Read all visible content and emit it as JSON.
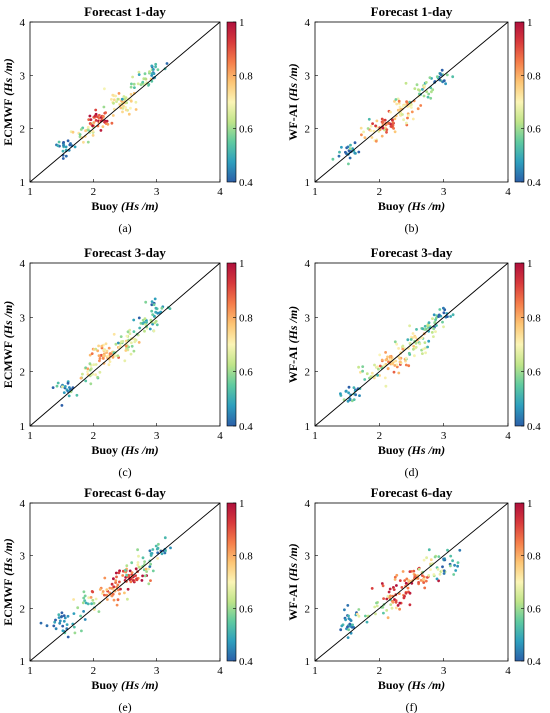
{
  "colorscale": {
    "stops": [
      "#2c5fa8",
      "#2e9fbe",
      "#5fcaa0",
      "#bfe589",
      "#fbf5b6",
      "#fdc574",
      "#f57d4a",
      "#d83a3c",
      "#b0103d"
    ],
    "ticks": [
      "0.4",
      "0.6",
      "0.8",
      "1"
    ],
    "range": [
      0.4,
      1
    ]
  },
  "chart_data": [
    {
      "type": "scatter",
      "panel": "a",
      "caption": "(a)",
      "title": "Forecast 1-day",
      "xlabel_main": "Buoy ",
      "xlabel_unit": "(Hs /m)",
      "ylabel_main": "ECMWF ",
      "ylabel_unit": "(Hs /m)",
      "xlim": [
        1,
        4
      ],
      "ylim": [
        1,
        4
      ],
      "xticks": [
        "1",
        "2",
        "3",
        "4"
      ],
      "yticks": [
        "1",
        "2",
        "3",
        "4"
      ],
      "reference_line": "y = x",
      "clusters": [
        {
          "x": 1.55,
          "y": 1.65,
          "sx": 0.08,
          "sy": 0.08,
          "n": 22,
          "c": 0.45
        },
        {
          "x": 1.85,
          "y": 1.95,
          "sx": 0.1,
          "sy": 0.1,
          "n": 22,
          "c": 0.65
        },
        {
          "x": 2.1,
          "y": 2.15,
          "sx": 0.1,
          "sy": 0.08,
          "n": 40,
          "c": 0.9
        },
        {
          "x": 2.45,
          "y": 2.5,
          "sx": 0.13,
          "sy": 0.11,
          "n": 45,
          "c": 0.72
        },
        {
          "x": 2.8,
          "y": 2.85,
          "sx": 0.1,
          "sy": 0.1,
          "n": 25,
          "c": 0.6
        },
        {
          "x": 3.0,
          "y": 3.1,
          "sx": 0.08,
          "sy": 0.07,
          "n": 18,
          "c": 0.5
        }
      ]
    },
    {
      "type": "scatter",
      "panel": "b",
      "caption": "(b)",
      "title": "Forecast 1-day",
      "xlabel_main": "Buoy ",
      "xlabel_unit": "(Hs /m)",
      "ylabel_main": "WF-AI ",
      "ylabel_unit": "(Hs /m)",
      "xlim": [
        1,
        4
      ],
      "ylim": [
        1,
        4
      ],
      "xticks": [
        "1",
        "2",
        "3",
        "4"
      ],
      "yticks": [
        "1",
        "2",
        "3",
        "4"
      ],
      "reference_line": "y = x",
      "clusters": [
        {
          "x": 1.55,
          "y": 1.55,
          "sx": 0.08,
          "sy": 0.08,
          "n": 22,
          "c": 0.45
        },
        {
          "x": 1.9,
          "y": 1.95,
          "sx": 0.1,
          "sy": 0.1,
          "n": 22,
          "c": 0.7
        },
        {
          "x": 2.1,
          "y": 2.1,
          "sx": 0.1,
          "sy": 0.08,
          "n": 35,
          "c": 0.9
        },
        {
          "x": 2.35,
          "y": 2.35,
          "sx": 0.12,
          "sy": 0.11,
          "n": 45,
          "c": 0.75
        },
        {
          "x": 2.7,
          "y": 2.75,
          "sx": 0.1,
          "sy": 0.1,
          "n": 25,
          "c": 0.6
        },
        {
          "x": 2.95,
          "y": 3.0,
          "sx": 0.08,
          "sy": 0.07,
          "n": 18,
          "c": 0.48
        }
      ]
    },
    {
      "type": "scatter",
      "panel": "c",
      "caption": "(c)",
      "title": "Forecast 3-day",
      "xlabel_main": "Buoy ",
      "xlabel_unit": "(Hs /m)",
      "ylabel_main": "ECMWF ",
      "ylabel_unit": "(Hs /m)",
      "xlim": [
        1,
        4
      ],
      "ylim": [
        1,
        4
      ],
      "xticks": [
        "1",
        "2",
        "3",
        "4"
      ],
      "yticks": [
        "1",
        "2",
        "3",
        "4"
      ],
      "reference_line": "y = x",
      "clusters": [
        {
          "x": 1.55,
          "y": 1.7,
          "sx": 0.08,
          "sy": 0.08,
          "n": 22,
          "c": 0.45
        },
        {
          "x": 1.9,
          "y": 2.0,
          "sx": 0.1,
          "sy": 0.1,
          "n": 22,
          "c": 0.65
        },
        {
          "x": 2.2,
          "y": 2.3,
          "sx": 0.12,
          "sy": 0.1,
          "n": 45,
          "c": 0.78
        },
        {
          "x": 2.5,
          "y": 2.55,
          "sx": 0.13,
          "sy": 0.12,
          "n": 45,
          "c": 0.66
        },
        {
          "x": 2.85,
          "y": 2.9,
          "sx": 0.11,
          "sy": 0.11,
          "n": 28,
          "c": 0.55
        },
        {
          "x": 3.0,
          "y": 3.15,
          "sx": 0.09,
          "sy": 0.08,
          "n": 18,
          "c": 0.45
        }
      ]
    },
    {
      "type": "scatter",
      "panel": "d",
      "caption": "(d)",
      "title": "Forecast 3-day",
      "xlabel_main": "Buoy ",
      "xlabel_unit": "(Hs /m)",
      "ylabel_main": "WF-AI ",
      "ylabel_unit": "(Hs /m)",
      "xlim": [
        1,
        4
      ],
      "ylim": [
        1,
        4
      ],
      "xticks": [
        "1",
        "2",
        "3",
        "4"
      ],
      "yticks": [
        "1",
        "2",
        "3",
        "4"
      ],
      "reference_line": "y = x",
      "clusters": [
        {
          "x": 1.55,
          "y": 1.6,
          "sx": 0.08,
          "sy": 0.08,
          "n": 22,
          "c": 0.45
        },
        {
          "x": 1.9,
          "y": 1.95,
          "sx": 0.1,
          "sy": 0.1,
          "n": 22,
          "c": 0.65
        },
        {
          "x": 2.2,
          "y": 2.2,
          "sx": 0.12,
          "sy": 0.1,
          "n": 45,
          "c": 0.78
        },
        {
          "x": 2.5,
          "y": 2.5,
          "sx": 0.13,
          "sy": 0.12,
          "n": 45,
          "c": 0.66
        },
        {
          "x": 2.8,
          "y": 2.8,
          "sx": 0.11,
          "sy": 0.11,
          "n": 28,
          "c": 0.56
        },
        {
          "x": 3.0,
          "y": 3.05,
          "sx": 0.09,
          "sy": 0.08,
          "n": 18,
          "c": 0.45
        }
      ]
    },
    {
      "type": "scatter",
      "panel": "e",
      "caption": "(e)",
      "title": "Forecast 6-day",
      "xlabel_main": "Buoy ",
      "xlabel_unit": "(Hs /m)",
      "ylabel_main": "ECMWF ",
      "ylabel_unit": "(Hs /m)",
      "xlim": [
        1,
        4
      ],
      "ylim": [
        1,
        4
      ],
      "xticks": [
        "1",
        "2",
        "3",
        "4"
      ],
      "yticks": [
        "1",
        "2",
        "3",
        "4"
      ],
      "reference_line": "y = x",
      "clusters": [
        {
          "x": 1.55,
          "y": 1.7,
          "sx": 0.1,
          "sy": 0.12,
          "n": 28,
          "c": 0.45
        },
        {
          "x": 1.9,
          "y": 2.05,
          "sx": 0.12,
          "sy": 0.12,
          "n": 22,
          "c": 0.6
        },
        {
          "x": 2.25,
          "y": 2.3,
          "sx": 0.12,
          "sy": 0.1,
          "n": 35,
          "c": 0.85
        },
        {
          "x": 2.55,
          "y": 2.6,
          "sx": 0.13,
          "sy": 0.1,
          "n": 45,
          "c": 0.92
        },
        {
          "x": 2.85,
          "y": 2.8,
          "sx": 0.13,
          "sy": 0.13,
          "n": 28,
          "c": 0.6
        },
        {
          "x": 3.05,
          "y": 3.05,
          "sx": 0.1,
          "sy": 0.1,
          "n": 18,
          "c": 0.45
        }
      ]
    },
    {
      "type": "scatter",
      "panel": "f",
      "caption": "(f)",
      "title": "Forecast 6-day",
      "xlabel_main": "Buoy ",
      "xlabel_unit": "(Hs /m)",
      "ylabel_main": "WF-AI ",
      "ylabel_unit": "(Hs /m)",
      "xlim": [
        1,
        4
      ],
      "ylim": [
        1,
        4
      ],
      "xticks": [
        "1",
        "2",
        "3",
        "4"
      ],
      "yticks": [
        "1",
        "2",
        "3",
        "4"
      ],
      "reference_line": "y = x",
      "clusters": [
        {
          "x": 1.55,
          "y": 1.7,
          "sx": 0.1,
          "sy": 0.12,
          "n": 28,
          "c": 0.45
        },
        {
          "x": 1.95,
          "y": 2.0,
          "sx": 0.12,
          "sy": 0.12,
          "n": 22,
          "c": 0.62
        },
        {
          "x": 2.25,
          "y": 2.25,
          "sx": 0.12,
          "sy": 0.1,
          "n": 35,
          "c": 0.92
        },
        {
          "x": 2.55,
          "y": 2.55,
          "sx": 0.13,
          "sy": 0.1,
          "n": 45,
          "c": 0.85
        },
        {
          "x": 2.85,
          "y": 2.75,
          "sx": 0.13,
          "sy": 0.13,
          "n": 28,
          "c": 0.6
        },
        {
          "x": 3.05,
          "y": 2.9,
          "sx": 0.1,
          "sy": 0.1,
          "n": 18,
          "c": 0.45
        }
      ]
    }
  ]
}
